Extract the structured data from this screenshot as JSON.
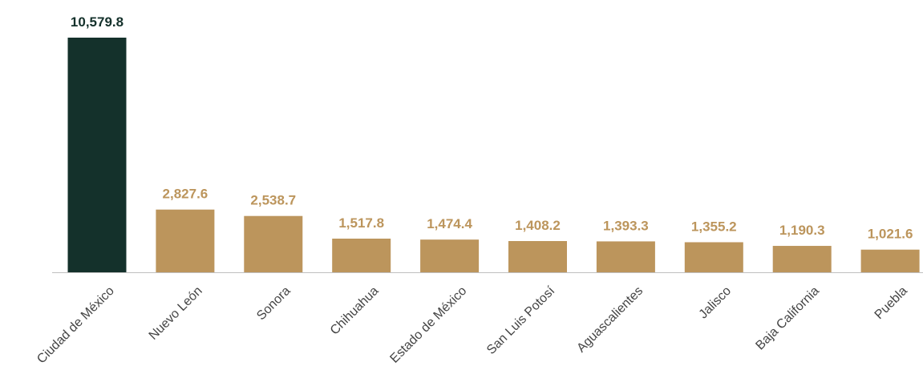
{
  "colors": {
    "highlight": "#14312b",
    "bar": "#bc955c",
    "axis": "#bfbfbf",
    "category_text": "#444444"
  },
  "chart_data": {
    "type": "bar",
    "categories": [
      "Ciudad de México",
      "Nuevo León",
      "Sonora",
      "Chihuahua",
      "Estado de México",
      "San Luis Potosí",
      "Aguascalientes",
      "Jalisco",
      "Baja California",
      "Puebla"
    ],
    "values": [
      10579.8,
      2827.6,
      2538.7,
      1517.8,
      1474.4,
      1408.2,
      1393.3,
      1355.2,
      1190.3,
      1021.6
    ],
    "data_labels": [
      "10,579.8",
      "2,827.6",
      "2,538.7",
      "1,517.8",
      "1,474.4",
      "1,408.2",
      "1,393.3",
      "1,355.2",
      "1,190.3",
      "1,021.6"
    ],
    "highlight_index": 0,
    "title": "",
    "xlabel": "",
    "ylabel": "",
    "ylim": [
      0,
      10579.8
    ],
    "grid": false,
    "legend": "none"
  }
}
